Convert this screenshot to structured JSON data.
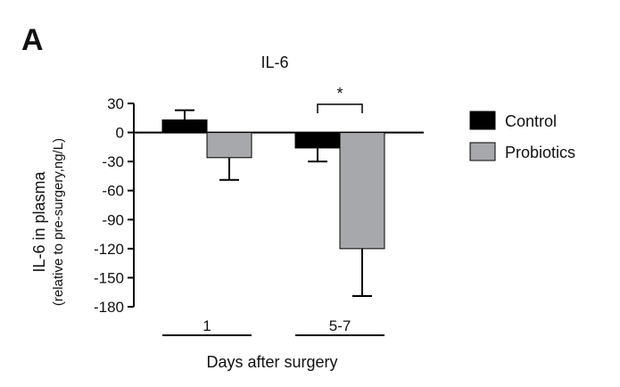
{
  "panel_label": "A",
  "chart_data": {
    "type": "bar",
    "title": "IL-6",
    "ylabel": "IL-6 in plasma",
    "ylabel_sub": "(relative to pre-surgery,ng/L)",
    "xlabel": "Days after surgery",
    "categories": [
      "1",
      "5-7"
    ],
    "ylim": [
      -180,
      30
    ],
    "yticks": [
      30,
      0,
      -30,
      -60,
      -90,
      -120,
      -150,
      -180
    ],
    "series": [
      {
        "name": "Control",
        "color": "#000000",
        "values": [
          13,
          -16
        ],
        "errors": [
          10,
          14
        ]
      },
      {
        "name": "Probiotics",
        "color": "#a7a8ab",
        "values": [
          -26,
          -120
        ],
        "errors": [
          23,
          49
        ]
      }
    ],
    "annotations": [
      {
        "text": "*",
        "between": "Control vs Probiotics",
        "category": "5-7"
      }
    ],
    "legend_position": "right"
  }
}
